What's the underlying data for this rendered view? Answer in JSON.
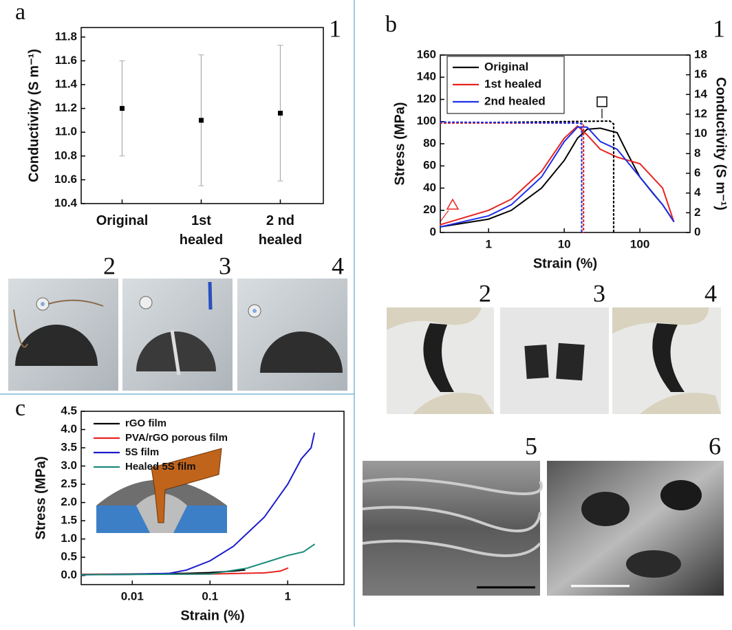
{
  "panel_labels": [
    "a",
    "b",
    "c"
  ],
  "sub_labels": [
    "1",
    "2",
    "3",
    "4",
    "1",
    "2",
    "3",
    "4",
    "5",
    "6"
  ],
  "chart_data": [
    {
      "type": "errorbar",
      "y_label": "Conductivity (S m⁻¹)",
      "categories": [
        "Original",
        "1st\nhealed",
        "2 nd\nhealed"
      ],
      "values": [
        11.2,
        11.1,
        11.16
      ],
      "errors": [
        0.4,
        0.55,
        0.57
      ],
      "color": "#000000",
      "error_color": "#aaaaaa",
      "ylim": [
        10.4,
        11.88
      ],
      "yticks": [
        10.4,
        10.6,
        10.8,
        {
          "value": 11.0,
          "label": "11.0"
        },
        11.2,
        11.4,
        11.6,
        11.8
      ]
    },
    {
      "type": "line",
      "log_x": true,
      "x_label": "Strain (%)",
      "y_label": "Stress (MPa)",
      "y2_label": "Conductivity (S m⁻¹)",
      "xlim": [
        0.23,
        460
      ],
      "xticks": [
        1,
        10,
        100
      ],
      "ylim": [
        0,
        160
      ],
      "yticks": [
        0,
        20,
        40,
        60,
        80,
        100,
        120,
        140,
        160
      ],
      "y2lim": [
        0,
        18
      ],
      "y2ticks": [
        0,
        2,
        4,
        6,
        8,
        10,
        12,
        14,
        16,
        18
      ],
      "legend": "upper-left",
      "legend_box": true,
      "series": [
        {
          "name": "Original",
          "color": "#000000",
          "x": [
            0.23,
            1,
            2,
            5,
            10,
            15,
            20,
            30,
            50,
            70,
            100,
            150,
            200,
            280
          ],
          "values": [
            5,
            12,
            20,
            40,
            65,
            85,
            93,
            94,
            90,
            70,
            50,
            35,
            25,
            10
          ]
        },
        {
          "name": "1st healed",
          "color": "#e8231f",
          "x": [
            0.23,
            1,
            2,
            5,
            10,
            15,
            20,
            30,
            50,
            100,
            200,
            280
          ],
          "values": [
            7,
            20,
            30,
            55,
            85,
            96,
            88,
            75,
            68,
            62,
            40,
            10
          ]
        },
        {
          "name": "2nd healed",
          "color": "#1f2fe8",
          "x": [
            0.23,
            1,
            2,
            5,
            10,
            15,
            20,
            30,
            50,
            100,
            200,
            280
          ],
          "values": [
            5,
            15,
            25,
            50,
            82,
            95,
            95,
            82,
            75,
            50,
            25,
            10
          ]
        },
        {
          "color": "#000000",
          "axis": "y2",
          "style": "dotted",
          "x": [
            0.23,
            40,
            45,
            45
          ],
          "values": [
            11.1,
            11.3,
            11.0,
            0
          ]
        },
        {
          "color": "#e8231f",
          "axis": "y2",
          "style": "dotted",
          "x": [
            0.23,
            15,
            18,
            18
          ],
          "values": [
            11.1,
            11.1,
            11.0,
            0
          ]
        },
        {
          "color": "#1f2fe8",
          "axis": "y2",
          "style": "dotted",
          "x": [
            0.23,
            16,
            17,
            17
          ],
          "values": [
            11.2,
            11.1,
            11.0,
            0
          ]
        }
      ]
    },
    {
      "type": "line",
      "log_x": true,
      "x_label": "Strain (%)",
      "y_label": "Stress (MPa)",
      "xlim": [
        0.0022,
        5.3
      ],
      "xticks": [
        0.01,
        0.1,
        1
      ],
      "ylim": [
        -0.25,
        4.5
      ],
      "yticks": [
        {
          "value": 0,
          "label": "0.0"
        },
        0.5,
        {
          "value": 1,
          "label": "1.0"
        },
        1.5,
        {
          "value": 2,
          "label": "2.0"
        },
        2.5,
        {
          "value": 3,
          "label": "3.0"
        },
        3.5,
        {
          "value": 4,
          "label": "4.0"
        },
        4.5
      ],
      "legend": "upper-left",
      "legend_box": false,
      "series": [
        {
          "name": "rGO film",
          "color": "#000000",
          "x": [
            0.0022,
            0.01,
            0.05,
            0.1,
            0.2,
            0.28
          ],
          "values": [
            0.03,
            0.04,
            0.06,
            0.08,
            0.12,
            0.15
          ]
        },
        {
          "name": "PVA/rGO porous film",
          "color": "#e8231f",
          "x": [
            0.0022,
            0.1,
            0.5,
            0.8,
            1.0
          ],
          "values": [
            0.03,
            0.04,
            0.07,
            0.12,
            0.2
          ]
        },
        {
          "name": "5S film",
          "color": "#1a1acc",
          "x": [
            0.0022,
            0.01,
            0.03,
            0.05,
            0.1,
            0.2,
            0.5,
            1,
            1.5,
            2.0,
            2.2
          ],
          "values": [
            0.02,
            0.03,
            0.06,
            0.15,
            0.4,
            0.8,
            1.6,
            2.5,
            3.2,
            3.5,
            3.9
          ]
        },
        {
          "name": "Healed 5S film",
          "color": "#1a8a7a",
          "x": [
            0.0022,
            0.1,
            0.3,
            0.6,
            1,
            1.6,
            2.2
          ],
          "values": [
            0.02,
            0.04,
            0.2,
            0.4,
            0.55,
            0.65,
            0.85
          ]
        }
      ]
    }
  ]
}
